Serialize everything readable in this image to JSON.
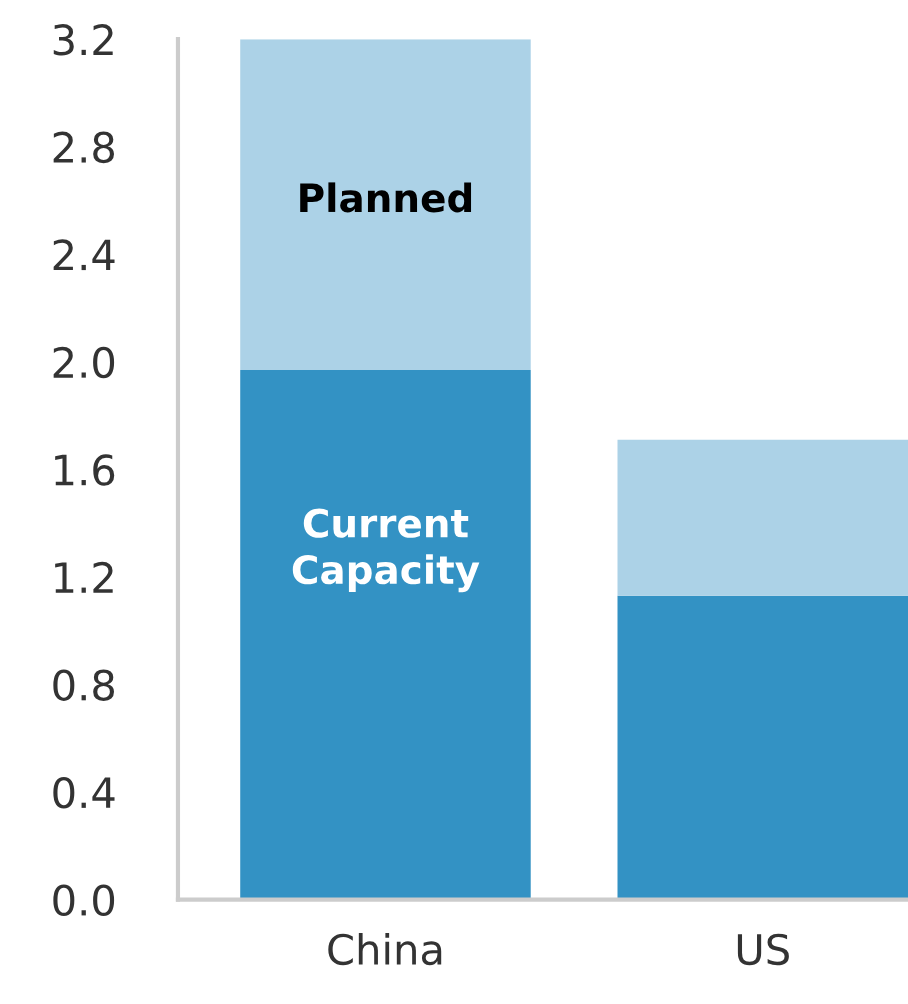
{
  "chart_data": {
    "type": "bar",
    "stacked": true,
    "categories": [
      "China",
      "US"
    ],
    "series": [
      {
        "name": "Current Capacity",
        "color": "#3392c4",
        "values": [
          1.97,
          1.13
        ]
      },
      {
        "name": "Planned",
        "color": "#acd2e7",
        "values": [
          1.23,
          0.58
        ]
      }
    ],
    "ylim": [
      0,
      3.2
    ],
    "yticks": [
      {
        "value": 0,
        "label": "0.0"
      },
      0.4,
      0.8,
      1.2,
      1.6,
      {
        "value": 2,
        "label": "2.0"
      },
      2.4,
      2.8,
      3.2
    ],
    "grid": false,
    "legend": false
  }
}
